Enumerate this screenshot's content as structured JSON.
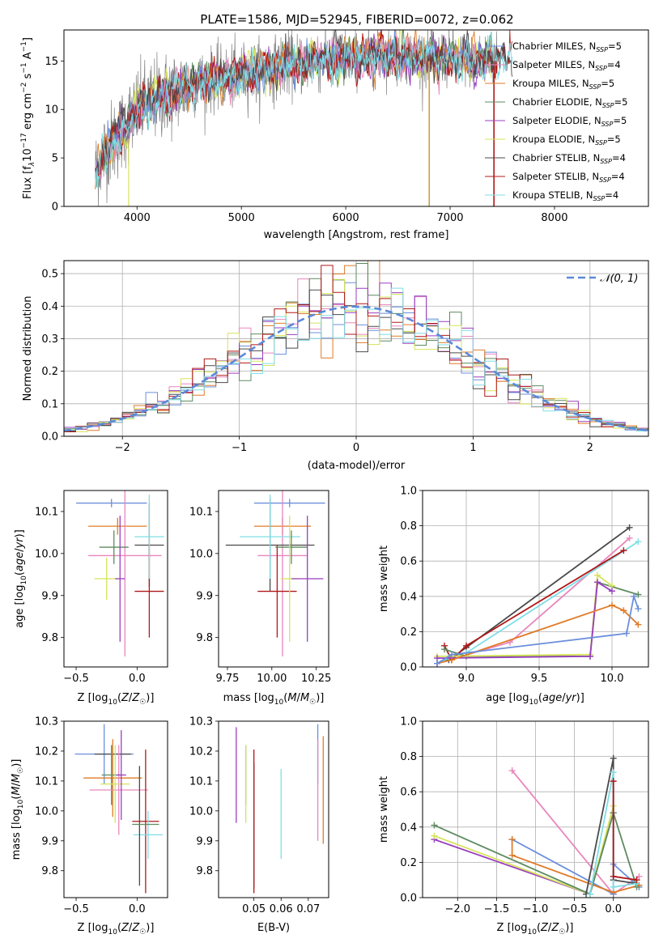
{
  "colors": {
    "Chabrier MILES": "#6b8fdc",
    "Salpeter MILES": "#e986bd",
    "Kroupa MILES": "#e07b27",
    "Chabrier ELODIE": "#5e8b60",
    "Salpeter ELODIE": "#9a3fc0",
    "Kroupa ELODIE": "#d6e35a",
    "Chabrier STELIB": "#4a4a4a",
    "Salpeter STELIB": "#b01818",
    "Kroupa STELIB": "#7fdde6"
  },
  "chart_data": [
    {
      "id": "spectrum",
      "type": "line",
      "title": "PLATE=1586, MJD=52945, FIBERID=0072, z=0.062",
      "xlabel": "wavelength [Angstrom, rest frame]",
      "ylabel_parts": {
        "a": "Flux [f",
        "sub1": "λ",
        "b": "10",
        "sup1": "−17",
        "c": " erg cm",
        "sup2": "−2",
        "d": " s",
        "sup3": "−1",
        "e": " A",
        "sup4": "−1",
        "f": "]"
      },
      "xlim": [
        3300,
        8900
      ],
      "ylim": [
        0,
        18.2
      ],
      "xticks": [
        4000,
        5000,
        6000,
        7000,
        8000
      ],
      "yticks": [
        0,
        5,
        10,
        15
      ],
      "xtick_labels": [
        "4000",
        "5000",
        "6000",
        "7000",
        "8000"
      ],
      "ytick_labels": [
        "0",
        "5",
        "10",
        "15"
      ],
      "grid": false,
      "legend_position": "right",
      "legend": [
        {
          "name": "Chabrier MILES",
          "nssp": "5"
        },
        {
          "name": "Salpeter MILES",
          "nssp": "4"
        },
        {
          "name": "Kroupa MILES",
          "nssp": "5"
        },
        {
          "name": "Chabrier ELODIE",
          "nssp": "5"
        },
        {
          "name": "Salpeter ELODIE",
          "nssp": "5"
        },
        {
          "name": "Kroupa ELODIE",
          "nssp": "5"
        },
        {
          "name": "Chabrier STELIB",
          "nssp": "4"
        },
        {
          "name": "Salpeter STELIB",
          "nssp": "4"
        },
        {
          "name": "Kroupa STELIB",
          "nssp": "4"
        }
      ],
      "continuum": {
        "x": [
          3600,
          3700,
          3800,
          3900,
          4000,
          4200,
          4400,
          4600,
          4800,
          5000,
          5200,
          5400,
          5600,
          5800,
          6000,
          6200,
          6400,
          6600,
          6800,
          7000,
          7200,
          7400,
          7600,
          7800,
          8000,
          8200,
          8400,
          8600,
          8800
        ],
        "y": [
          3.5,
          6.0,
          7.0,
          8.5,
          10.0,
          11.2,
          12.0,
          12.8,
          13.2,
          13.6,
          14.0,
          14.4,
          14.8,
          15.1,
          15.3,
          15.4,
          15.5,
          15.5,
          15.4,
          15.3,
          15.2,
          15.1,
          15.0,
          14.9,
          14.8,
          14.7,
          14.6,
          14.5,
          14.4
        ]
      }
    },
    {
      "id": "residuals",
      "type": "step",
      "xlabel": "(data-model)/error",
      "ylabel": "Normed distribution",
      "xlim": [
        -2.5,
        2.5
      ],
      "ylim": [
        0,
        0.54
      ],
      "xticks": [
        -2,
        -1,
        0,
        1,
        2
      ],
      "yticks": [
        0,
        0.1,
        0.2,
        0.3,
        0.4,
        0.5
      ],
      "xtick_labels": [
        "−2",
        "−1",
        "0",
        "1",
        "2"
      ],
      "ytick_labels": [
        "0.0",
        "0.1",
        "0.2",
        "0.3",
        "0.4",
        "0.5"
      ],
      "grid": true,
      "legend": "𝒩(0, 1)",
      "legend_position": "top-right",
      "gaussian": {
        "mu": 0,
        "sigma": 1,
        "color": "#5b8ad9"
      }
    },
    {
      "id": "age_vs_Z",
      "type": "errorbar",
      "xlabel": "Z [log10(Z/Z☉)]",
      "ylabel": "age  [log10(age/yr)]",
      "xlim": [
        -0.6,
        0.25
      ],
      "ylim": [
        9.73,
        10.15
      ],
      "xticks": [
        -0.5,
        0.0
      ],
      "yticks": [
        9.8,
        9.9,
        10.0,
        10.1
      ],
      "xtick_labels": [
        "−0.5",
        "0.0"
      ],
      "ytick_labels": [
        "9.8",
        "9.9",
        "10.0",
        "10.1"
      ],
      "points": [
        {
          "s": "Chabrier MILES",
          "x": -0.21,
          "xerr": 0.29,
          "y": 10.12,
          "yerr": 0.01
        },
        {
          "s": "Kroupa MILES",
          "x": -0.16,
          "xerr": 0.24,
          "y": 10.065,
          "yerr": 0.02
        },
        {
          "s": "Salpeter MILES",
          "x": -0.1,
          "xerr": 0.3,
          "y": 9.995,
          "yerr": 0.24
        },
        {
          "s": "Chabrier ELODIE",
          "x": -0.19,
          "xerr": 0.12,
          "y": 10.015,
          "yerr": 0.04
        },
        {
          "s": "Kroupa ELODIE",
          "x": -0.25,
          "xerr": 0.1,
          "y": 9.94,
          "yerr": 0.05
        },
        {
          "s": "Salpeter ELODIE",
          "x": -0.14,
          "xerr": 0.04,
          "y": 9.94,
          "yerr": 0.15
        },
        {
          "s": "Chabrier STELIB",
          "x": 0.1,
          "xerr": 0.12,
          "y": 10.02,
          "yerr": 0.1
        },
        {
          "s": "Salpeter STELIB",
          "x": 0.1,
          "xerr": 0.12,
          "y": 9.91,
          "yerr": 0.11
        },
        {
          "s": "Kroupa STELIB",
          "x": 0.1,
          "xerr": 0.12,
          "y": 10.04,
          "yerr": 0.1
        }
      ]
    },
    {
      "id": "age_vs_mass",
      "type": "errorbar",
      "xlabel": "mass [log10(M/M☉)]",
      "ylabel": "",
      "xlim": [
        9.7,
        10.32
      ],
      "ylim": [
        9.73,
        10.15
      ],
      "xticks": [
        9.75,
        10.0,
        10.25
      ],
      "yticks": [
        9.8,
        9.9,
        10.0,
        10.1
      ],
      "xtick_labels": [
        "9.75",
        "10.00",
        "10.25"
      ],
      "ytick_labels": [
        "9.8",
        "9.9",
        "10.0",
        "10.1"
      ],
      "points": [
        {
          "s": "Chabrier MILES",
          "x": 10.1,
          "xerr": 0.2,
          "y": 10.12,
          "yerr": 0.01
        },
        {
          "s": "Kroupa MILES",
          "x": 10.06,
          "xerr": 0.16,
          "y": 10.065,
          "yerr": 0.02
        },
        {
          "s": "Salpeter MILES",
          "x": 10.06,
          "xerr": 0.14,
          "y": 9.995,
          "yerr": 0.24
        },
        {
          "s": "Chabrier STELIB",
          "x": 9.99,
          "xerr": 0.25,
          "y": 10.02,
          "yerr": 0.11
        },
        {
          "s": "Kroupa STELIB",
          "x": 9.99,
          "xerr": 0.17,
          "y": 10.04,
          "yerr": 0.1
        },
        {
          "s": "Salpeter STELIB",
          "x": 10.03,
          "xerr": 0.11,
          "y": 9.91,
          "yerr": 0.11
        },
        {
          "s": "Chabrier ELODIE",
          "x": 10.11,
          "xerr": 0.09,
          "y": 10.015,
          "yerr": 0.04
        },
        {
          "s": "Kroupa ELODIE",
          "x": 10.1,
          "xerr": 0.05,
          "y": 9.94,
          "yerr": 0.15
        },
        {
          "s": "Salpeter ELODIE",
          "x": 10.2,
          "xerr": 0.09,
          "y": 9.94,
          "yerr": 0.15
        }
      ]
    },
    {
      "id": "weight_vs_age",
      "type": "line",
      "xlabel": "age  [log10(age/yr)]",
      "ylabel": "mass weight",
      "xlim": [
        8.7,
        10.25
      ],
      "ylim": [
        0,
        1
      ],
      "xticks": [
        9.0,
        9.5,
        10.0
      ],
      "yticks": [
        0,
        0.2,
        0.4,
        0.6,
        0.8,
        1.0
      ],
      "xtick_labels": [
        "9.0",
        "9.5",
        "10.0"
      ],
      "ytick_labels": [
        "0.0",
        "0.2",
        "0.4",
        "0.6",
        "0.8",
        "1.0"
      ],
      "grid": true,
      "series": [
        {
          "s": "Salpeter MILES",
          "x": [
            8.8,
            9.3,
            10.12
          ],
          "y": [
            0.02,
            0.14,
            0.73
          ]
        },
        {
          "s": "Chabrier STELIB",
          "x": [
            8.8,
            8.88,
            9.0,
            10.12
          ],
          "y": [
            0.02,
            0.04,
            0.11,
            0.79
          ]
        },
        {
          "s": "Kroupa STELIB",
          "x": [
            8.8,
            8.88,
            9.0,
            10.18
          ],
          "y": [
            0.02,
            0.05,
            0.08,
            0.71
          ]
        },
        {
          "s": "Salpeter STELIB",
          "x": [
            8.85,
            8.9,
            9.0,
            10.08
          ],
          "y": [
            0.12,
            0.04,
            0.12,
            0.66
          ]
        },
        {
          "s": "Chabrier ELODIE",
          "x": [
            8.85,
            9.0,
            9.85,
            9.9,
            10.18
          ],
          "y": [
            0.1,
            0.06,
            0.06,
            0.48,
            0.41
          ]
        },
        {
          "s": "Kroupa ELODIE",
          "x": [
            8.8,
            9.85,
            9.9,
            10.0
          ],
          "y": [
            0.06,
            0.07,
            0.52,
            0.46
          ]
        },
        {
          "s": "Salpeter ELODIE",
          "x": [
            8.8,
            9.85,
            9.9,
            10.0
          ],
          "y": [
            0.05,
            0.06,
            0.48,
            0.43
          ]
        },
        {
          "s": "Kroupa MILES",
          "x": [
            8.8,
            8.9,
            10.0,
            10.08,
            10.18
          ],
          "y": [
            0.02,
            0.04,
            0.35,
            0.32,
            0.24
          ]
        },
        {
          "s": "Chabrier MILES",
          "x": [
            8.8,
            8.9,
            10.1,
            10.15,
            10.18
          ],
          "y": [
            0.02,
            0.07,
            0.19,
            0.4,
            0.33
          ]
        }
      ]
    },
    {
      "id": "mass_vs_Z",
      "type": "errorbar",
      "xlabel": "Z [log10(Z/Z☉)]",
      "ylabel": "mass [log10(M/M☉)]",
      "xlim": [
        -0.6,
        0.25
      ],
      "ylim": [
        9.71,
        10.3
      ],
      "xticks": [
        -0.5,
        0.0
      ],
      "yticks": [
        9.8,
        9.9,
        10.0,
        10.1,
        10.2,
        10.3
      ],
      "xtick_labels": [
        "−0.5",
        "0.0"
      ],
      "ytick_labels": [
        "9.8",
        "9.9",
        "10.0",
        "10.1",
        "10.2",
        "10.3"
      ],
      "points": [
        {
          "s": "Chabrier MILES",
          "x": -0.27,
          "xerr": 0.24,
          "y": 10.19,
          "yerr": 0.1
        },
        {
          "s": "Chabrier STELIB",
          "x": -0.2,
          "xerr": 0.15,
          "y": 10.19,
          "yerr": 0.0
        },
        {
          "s": "Kroupa MILES",
          "x": -0.2,
          "xerr": 0.24,
          "y": 10.11,
          "yerr": 0.13
        },
        {
          "s": "Chabrier ELODIE",
          "x": -0.21,
          "xerr": 0.08,
          "y": 10.12,
          "yerr": 0.1
        },
        {
          "s": "Salpeter MILES",
          "x": -0.15,
          "xerr": 0.24,
          "y": 10.07,
          "yerr": 0.15
        },
        {
          "s": "Kroupa ELODIE",
          "x": -0.18,
          "xerr": 0.12,
          "y": 10.09,
          "yerr": 0.13
        },
        {
          "s": "Salpeter ELODIE",
          "x": -0.13,
          "xerr": 0.04,
          "y": 10.12,
          "yerr": 0.15
        },
        {
          "s": "Salpeter STELIB",
          "x": 0.07,
          "xerr": 0.11,
          "y": 9.965,
          "yerr": 0.24
        },
        {
          "s": "Kroupa STELIB",
          "x": 0.09,
          "xerr": 0.12,
          "y": 9.92,
          "yerr": 0.08
        },
        {
          "s": "Chabrier STELIB",
          "x": 0.02,
          "xerr": 0.0,
          "y": 9.95,
          "yerr": 0.2
        },
        {
          "s": "Chabrier ELODIE",
          "x": 0.07,
          "xerr": 0.11,
          "y": 9.955,
          "yerr": 0.0
        }
      ]
    },
    {
      "id": "mass_vs_ebv",
      "type": "errorbar",
      "xlabel": "E(B-V)",
      "ylabel": "",
      "xlim": [
        0.037,
        0.0775
      ],
      "ylim": [
        9.71,
        10.3
      ],
      "xticks": [
        0.05,
        0.06,
        0.07
      ],
      "yticks": [
        9.8,
        9.9,
        10.0,
        10.1,
        10.2,
        10.3
      ],
      "xtick_labels": [
        "0.05",
        "0.06",
        "0.07"
      ],
      "ytick_labels": [
        "9.8",
        "9.9",
        "10.0",
        "10.1",
        "10.2",
        "10.3"
      ],
      "points": [
        {
          "s": "Salpeter ELODIE",
          "x": 0.0435,
          "y": 10.12,
          "yerr": 0.16
        },
        {
          "s": "Chabrier ELODIE",
          "x": 0.047,
          "y": 10.12,
          "yerr": 0.1
        },
        {
          "s": "Kroupa ELODIE",
          "x": 0.047,
          "y": 10.09,
          "yerr": 0.13
        },
        {
          "s": "Chabrier STELIB",
          "x": 0.05,
          "y": 9.95,
          "yerr": 0.21
        },
        {
          "s": "Salpeter STELIB",
          "x": 0.05,
          "y": 9.965,
          "yerr": 0.24
        },
        {
          "s": "Kroupa STELIB",
          "x": 0.06,
          "y": 9.99,
          "yerr": 0.15
        },
        {
          "s": "Chabrier MILES",
          "x": 0.0735,
          "y": 10.19,
          "yerr": 0.1
        },
        {
          "s": "Salpeter MILES",
          "x": 0.0735,
          "y": 10.07,
          "yerr": 0.17
        },
        {
          "s": "Kroupa MILES",
          "x": 0.0755,
          "y": 10.07,
          "yerr": 0.18
        }
      ]
    },
    {
      "id": "weight_vs_Z",
      "type": "line",
      "xlabel": "Z [log10(Z/Z☉)]",
      "ylabel": "mass weight",
      "xlim": [
        -2.45,
        0.45
      ],
      "ylim": [
        0,
        1
      ],
      "xticks": [
        -2.0,
        -1.5,
        -1.0,
        -0.5,
        0.0
      ],
      "yticks": [
        0,
        0.2,
        0.4,
        0.6,
        0.8,
        1.0
      ],
      "xtick_labels": [
        "−2.0",
        "−1.5",
        "−1.0",
        "−0.5",
        "0.0"
      ],
      "ytick_labels": [
        "0.0",
        "0.2",
        "0.4",
        "0.6",
        "0.8",
        "1.0"
      ],
      "grid": true,
      "series": [
        {
          "s": "Salpeter MILES",
          "x": [
            -1.3,
            0.0,
            0.33
          ],
          "y": [
            0.72,
            0.02,
            0.12
          ]
        },
        {
          "s": "Chabrier MILES",
          "x": [
            -1.3,
            0.0,
            0.0,
            0.33
          ],
          "y": [
            0.33,
            0.02,
            0.19,
            0.06
          ]
        },
        {
          "s": "Kroupa MILES",
          "x": [
            -1.3,
            -1.3,
            0.0,
            0.33
          ],
          "y": [
            0.33,
            0.24,
            0.03,
            0.07
          ]
        },
        {
          "s": "Salpeter ELODIE",
          "x": [
            -2.3,
            -0.3,
            0.0
          ],
          "y": [
            0.33,
            0.02,
            0.48
          ]
        },
        {
          "s": "Kroupa ELODIE",
          "x": [
            -2.3,
            -0.3,
            0.0
          ],
          "y": [
            0.35,
            0.02,
            0.52
          ]
        },
        {
          "s": "Chabrier ELODIE",
          "x": [
            -2.3,
            -0.3,
            0.0,
            0.3
          ],
          "y": [
            0.41,
            0.02,
            0.48,
            0.06
          ]
        },
        {
          "s": "Chabrier STELIB",
          "x": [
            -0.35,
            0.0,
            0.0,
            0.3
          ],
          "y": [
            0.02,
            0.79,
            0.1,
            0.08
          ]
        },
        {
          "s": "Kroupa STELIB",
          "x": [
            -0.3,
            0.0,
            0.0,
            0.3
          ],
          "y": [
            0.02,
            0.71,
            0.06,
            0.08
          ]
        },
        {
          "s": "Salpeter STELIB",
          "x": [
            0.0,
            0.0,
            0.3
          ],
          "y": [
            0.66,
            0.12,
            0.1
          ]
        }
      ]
    }
  ]
}
